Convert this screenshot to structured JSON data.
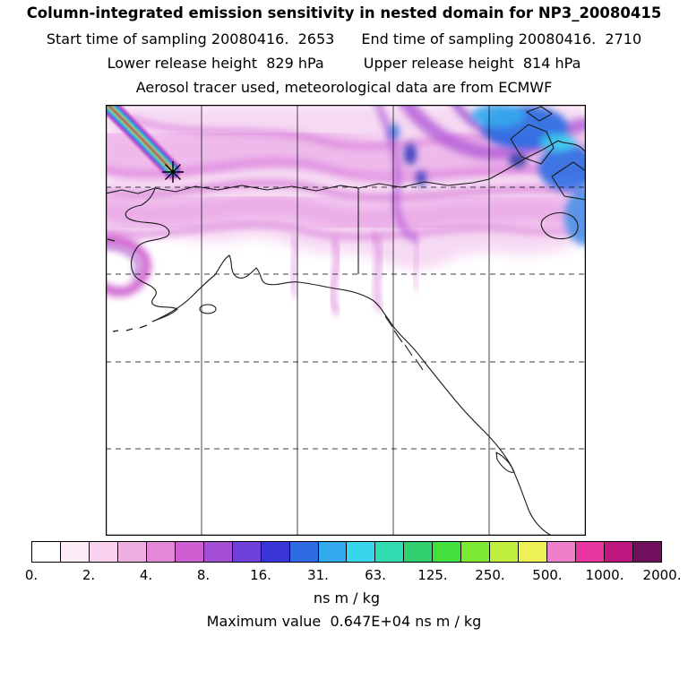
{
  "figure": {
    "title": "Column-integrated emission sensitivity in nested domain for NP3_20080415",
    "subtitle_start": "Start time of sampling 20080416.  2653",
    "subtitle_end": "End time of sampling 20080416.  2710",
    "lower_release": "Lower release height  829 hPa",
    "upper_release": "Upper release height  814 hPa",
    "tracer_note": "Aerosol tracer used, meteorological data are from ECMWF",
    "units_label": "ns m / kg",
    "max_value_label": "Maximum value  0.647E+04 ns m / kg"
  },
  "chart_data": {
    "type": "heatmap",
    "title": "Column-integrated emission sensitivity in nested domain for NP3_20080415",
    "sampling": {
      "start": "20080416.  2653",
      "end": "20080416.  2710"
    },
    "release": {
      "lower_height_hPa": 829,
      "upper_height_hPa": 814,
      "marker": "asterisk at release location in upper-left area of domain"
    },
    "tracer": "Aerosol tracer used, meteorological data are from ECMWF",
    "units": "ns m / kg",
    "max_value": "0.647E+04",
    "map_region": "Alaska / Bering Sea / western Canada nested domain with coastlines, dashed latitude lines and solid longitude lines",
    "field_description": "Magenta-purple emission-sensitivity plume over northern half of domain with high-value rainbow-banded streak (blue/cyan/green/yellow to magenta core) ending at release asterisk near upper left; blue patches in upper right; lower half of domain near zero (white)",
    "colorbar": {
      "orientation": "horizontal",
      "levels": [
        0,
        2,
        4,
        8,
        16,
        31,
        63,
        125,
        250,
        500,
        1000,
        2000
      ],
      "tick_labels": [
        "0.",
        "2.",
        "4.",
        "8.",
        "16.",
        "31.",
        "63.",
        "125.",
        "250.",
        "500.",
        "1000.",
        "2000."
      ],
      "colors": [
        "#ffffff",
        "#fceaf7",
        "#f8d2ee",
        "#f0afe3",
        "#e387d8",
        "#cf5fd0",
        "#a44ed6",
        "#6f40da",
        "#3a36da",
        "#2e6ce4",
        "#33aaee",
        "#38d6ec",
        "#31dcb2",
        "#30d06e",
        "#42e03c",
        "#7dea33",
        "#c0ee3c",
        "#eef254",
        "#ee7fc8",
        "#e8359f",
        "#c01680",
        "#70105e"
      ],
      "units": "ns m / kg"
    }
  }
}
